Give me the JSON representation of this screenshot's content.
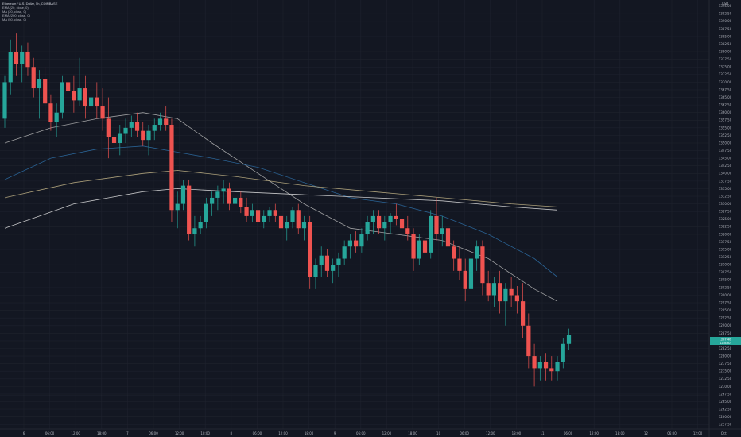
{
  "chart_data": {
    "type": "candlestick",
    "title": "Ethereum / U.S. Dollar, 5h, COINBASE",
    "indicators": [
      {
        "label": "EMA (20, close, 0)",
        "color": "#b7b7b7"
      },
      {
        "label": "MA (20, close, 0)",
        "color": "#2e6ea6"
      },
      {
        "label": "EMA (200, close, 0)",
        "color": "#c8b88a"
      },
      {
        "label": "MA (50, close, 0)",
        "color": "#e6e6e6"
      }
    ],
    "currency": "USD",
    "last_price": "1287.40",
    "last_price_sub": "1286.80",
    "x_ticks": [
      "6",
      "06:00",
      "12:00",
      "18:00",
      "7",
      "06:00",
      "12:00",
      "18:00",
      "8",
      "06:00",
      "12:00",
      "18:00",
      "9",
      "06:00",
      "12:00",
      "18:00",
      "10",
      "06:00",
      "12:00",
      "18:00",
      "11",
      "06:00",
      "12:00",
      "18:00",
      "12",
      "06:00",
      "12:00",
      "Oct"
    ],
    "y_ticks": [
      "1395.00",
      "1392.50",
      "1390.00",
      "1387.50",
      "1385.00",
      "1382.50",
      "1380.00",
      "1377.50",
      "1375.00",
      "1372.50",
      "1370.00",
      "1367.50",
      "1365.00",
      "1362.50",
      "1360.00",
      "1357.50",
      "1355.00",
      "1352.50",
      "1350.00",
      "1347.50",
      "1345.00",
      "1342.50",
      "1340.00",
      "1337.50",
      "1335.00",
      "1332.50",
      "1330.00",
      "1327.50",
      "1325.00",
      "1322.50",
      "1320.00",
      "1317.50",
      "1315.00",
      "1312.50",
      "1310.00",
      "1307.50",
      "1305.00",
      "1302.50",
      "1300.00",
      "1297.50",
      "1295.00",
      "1292.50",
      "1290.00",
      "1287.50",
      "1285.00",
      "1282.50",
      "1280.00",
      "1277.50",
      "1275.00",
      "1272.50",
      "1270.00",
      "1267.50",
      "1265.00",
      "1262.50",
      "1260.00",
      "1257.50"
    ],
    "ylim": [
      1256,
      1397
    ],
    "candles": [
      [
        1358,
        1372,
        1355,
        1370
      ],
      [
        1370,
        1384,
        1366,
        1380
      ],
      [
        1380,
        1386,
        1372,
        1376
      ],
      [
        1376,
        1382,
        1370,
        1380
      ],
      [
        1380,
        1383,
        1372,
        1375
      ],
      [
        1375,
        1378,
        1365,
        1368
      ],
      [
        1368,
        1374,
        1358,
        1371
      ],
      [
        1371,
        1375,
        1360,
        1363
      ],
      [
        1363,
        1366,
        1354,
        1357
      ],
      [
        1357,
        1363,
        1352,
        1360
      ],
      [
        1360,
        1372,
        1358,
        1370
      ],
      [
        1370,
        1376,
        1364,
        1367
      ],
      [
        1367,
        1372,
        1360,
        1364
      ],
      [
        1364,
        1378,
        1362,
        1368
      ],
      [
        1368,
        1372,
        1358,
        1362
      ],
      [
        1362,
        1368,
        1350,
        1365
      ],
      [
        1365,
        1370,
        1358,
        1362
      ],
      [
        1362,
        1368,
        1354,
        1358
      ],
      [
        1358,
        1365,
        1345,
        1352
      ],
      [
        1352,
        1357,
        1346,
        1350
      ],
      [
        1350,
        1356,
        1346,
        1353
      ],
      [
        1353,
        1358,
        1350,
        1355
      ],
      [
        1355,
        1359,
        1352,
        1357
      ],
      [
        1357,
        1360,
        1352,
        1354
      ],
      [
        1354,
        1357,
        1349,
        1351
      ],
      [
        1351,
        1356,
        1346,
        1354
      ],
      [
        1354,
        1358,
        1351,
        1356
      ],
      [
        1356,
        1360,
        1354,
        1358
      ],
      [
        1358,
        1362,
        1354,
        1356
      ],
      [
        1356,
        1358,
        1324,
        1328
      ],
      [
        1328,
        1334,
        1322,
        1330
      ],
      [
        1330,
        1338,
        1328,
        1336
      ],
      [
        1336,
        1338,
        1318,
        1320
      ],
      [
        1320,
        1326,
        1316,
        1322
      ],
      [
        1322,
        1326,
        1320,
        1324
      ],
      [
        1324,
        1332,
        1322,
        1330
      ],
      [
        1330,
        1334,
        1326,
        1332
      ],
      [
        1332,
        1336,
        1328,
        1334
      ],
      [
        1334,
        1338,
        1330,
        1335
      ],
      [
        1335,
        1337,
        1328,
        1330
      ],
      [
        1330,
        1334,
        1326,
        1332
      ],
      [
        1332,
        1334,
        1327,
        1329
      ],
      [
        1329,
        1332,
        1324,
        1326
      ],
      [
        1326,
        1330,
        1324,
        1328
      ],
      [
        1328,
        1330,
        1322,
        1324
      ],
      [
        1324,
        1328,
        1322,
        1326
      ],
      [
        1326,
        1329,
        1324,
        1328
      ],
      [
        1328,
        1330,
        1324,
        1326
      ],
      [
        1326,
        1328,
        1320,
        1322
      ],
      [
        1322,
        1326,
        1318,
        1324
      ],
      [
        1324,
        1329,
        1322,
        1328
      ],
      [
        1328,
        1330,
        1320,
        1322
      ],
      [
        1322,
        1326,
        1318,
        1324
      ],
      [
        1324,
        1326,
        1302,
        1306
      ],
      [
        1306,
        1312,
        1302,
        1310
      ],
      [
        1310,
        1316,
        1306,
        1313
      ],
      [
        1313,
        1315,
        1306,
        1308
      ],
      [
        1308,
        1312,
        1304,
        1310
      ],
      [
        1310,
        1314,
        1306,
        1312
      ],
      [
        1312,
        1318,
        1310,
        1316
      ],
      [
        1316,
        1320,
        1312,
        1318
      ],
      [
        1318,
        1321,
        1314,
        1316
      ],
      [
        1316,
        1322,
        1314,
        1320
      ],
      [
        1320,
        1326,
        1318,
        1324
      ],
      [
        1324,
        1328,
        1320,
        1326
      ],
      [
        1326,
        1328,
        1320,
        1322
      ],
      [
        1322,
        1326,
        1318,
        1324
      ],
      [
        1324,
        1327,
        1320,
        1326
      ],
      [
        1326,
        1330,
        1323,
        1325
      ],
      [
        1325,
        1328,
        1320,
        1322
      ],
      [
        1322,
        1326,
        1318,
        1320
      ],
      [
        1320,
        1322,
        1308,
        1312
      ],
      [
        1312,
        1320,
        1310,
        1318
      ],
      [
        1318,
        1322,
        1312,
        1314
      ],
      [
        1314,
        1328,
        1312,
        1326
      ],
      [
        1326,
        1332,
        1318,
        1320
      ],
      [
        1320,
        1326,
        1316,
        1322
      ],
      [
        1322,
        1326,
        1314,
        1316
      ],
      [
        1316,
        1318,
        1308,
        1312
      ],
      [
        1312,
        1316,
        1305,
        1308
      ],
      [
        1308,
        1312,
        1298,
        1302
      ],
      [
        1302,
        1314,
        1300,
        1312
      ],
      [
        1312,
        1318,
        1308,
        1316
      ],
      [
        1316,
        1318,
        1300,
        1304
      ],
      [
        1304,
        1308,
        1298,
        1300
      ],
      [
        1300,
        1306,
        1296,
        1304
      ],
      [
        1304,
        1308,
        1294,
        1298
      ],
      [
        1298,
        1304,
        1290,
        1302
      ],
      [
        1302,
        1306,
        1296,
        1300
      ],
      [
        1300,
        1303,
        1294,
        1298
      ],
      [
        1298,
        1304,
        1286,
        1290
      ],
      [
        1290,
        1294,
        1276,
        1280
      ],
      [
        1280,
        1284,
        1270,
        1276
      ],
      [
        1276,
        1280,
        1272,
        1278
      ],
      [
        1278,
        1281,
        1272,
        1276
      ],
      [
        1276,
        1280,
        1272,
        1275
      ],
      [
        1275,
        1280,
        1272,
        1278
      ],
      [
        1278,
        1286,
        1276,
        1284
      ],
      [
        1284,
        1289,
        1282,
        1287
      ]
    ],
    "overlay_lines": [
      {
        "name": "EMA (20, close, 0)",
        "color": "#b7b7b7",
        "values": [
          [
            0,
            1350
          ],
          [
            8,
            1355
          ],
          [
            16,
            1358
          ],
          [
            24,
            1360
          ],
          [
            30,
            1358
          ],
          [
            36,
            1350
          ],
          [
            44,
            1340
          ],
          [
            52,
            1330
          ],
          [
            60,
            1322
          ],
          [
            68,
            1320
          ],
          [
            76,
            1318
          ],
          [
            84,
            1312
          ],
          [
            92,
            1302
          ],
          [
            96,
            1298
          ]
        ]
      },
      {
        "name": "MA (20, close, 0)",
        "color": "#2e6ea6",
        "values": [
          [
            0,
            1338
          ],
          [
            8,
            1345
          ],
          [
            16,
            1348
          ],
          [
            24,
            1349
          ],
          [
            30,
            1347
          ],
          [
            36,
            1345
          ],
          [
            44,
            1342
          ],
          [
            52,
            1337
          ],
          [
            60,
            1332
          ],
          [
            68,
            1330
          ],
          [
            76,
            1326
          ],
          [
            84,
            1320
          ],
          [
            92,
            1312
          ],
          [
            96,
            1306
          ]
        ]
      },
      {
        "name": "EMA (200, close, 0)",
        "color": "#c8b88a",
        "values": [
          [
            0,
            1332
          ],
          [
            12,
            1337
          ],
          [
            24,
            1340
          ],
          [
            30,
            1341
          ],
          [
            40,
            1339
          ],
          [
            52,
            1336
          ],
          [
            64,
            1334
          ],
          [
            76,
            1332
          ],
          [
            88,
            1330
          ],
          [
            96,
            1329
          ]
        ]
      },
      {
        "name": "MA (50, close, 0)",
        "color": "#e6e6e6",
        "values": [
          [
            0,
            1322
          ],
          [
            12,
            1330
          ],
          [
            24,
            1334
          ],
          [
            30,
            1335
          ],
          [
            40,
            1334
          ],
          [
            52,
            1333
          ],
          [
            64,
            1332
          ],
          [
            76,
            1331
          ],
          [
            88,
            1329
          ],
          [
            96,
            1328
          ]
        ]
      }
    ],
    "grid": true
  }
}
